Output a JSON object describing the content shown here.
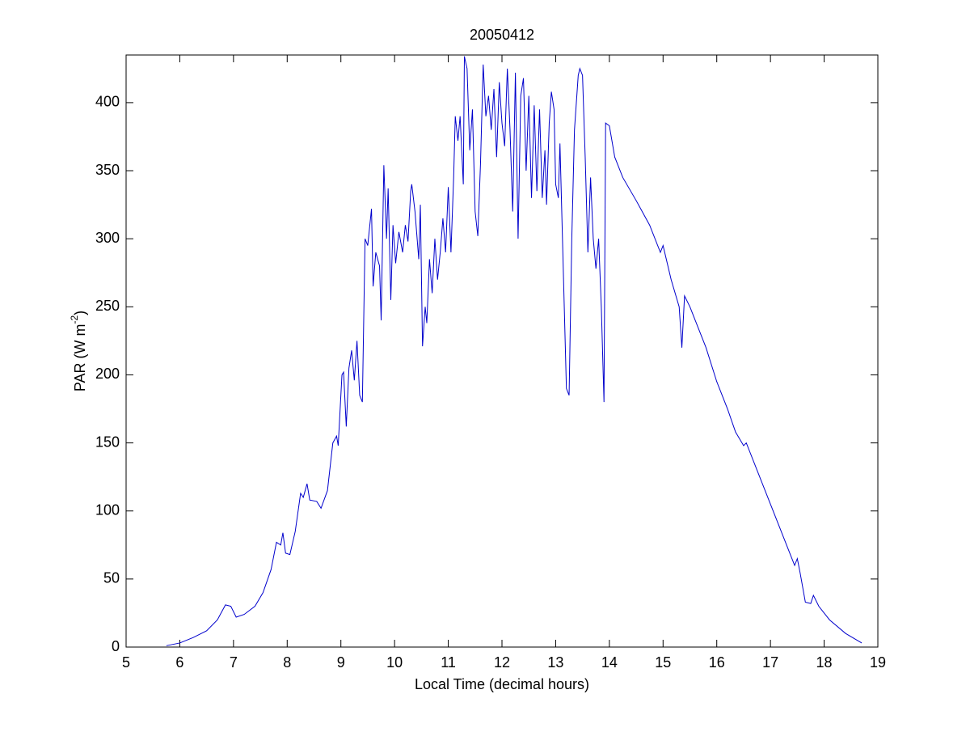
{
  "chart_data": {
    "type": "line",
    "title": "20050412",
    "x_label": "Local Time (decimal hours)",
    "y_label": {
      "text": "PAR (W m",
      "sup": "-2",
      "end": ")"
    },
    "xlim": [
      5,
      19
    ],
    "ylim": [
      0,
      435
    ],
    "xticks": [
      5,
      6,
      7,
      8,
      9,
      10,
      11,
      12,
      13,
      14,
      15,
      16,
      17,
      18,
      19
    ],
    "yticks": [
      0,
      50,
      100,
      150,
      200,
      250,
      300,
      350,
      400
    ],
    "grid": false,
    "box": true,
    "series": [
      {
        "color": "#0000cc",
        "x": [
          5.75,
          6.0,
          6.25,
          6.5,
          6.7,
          6.85,
          6.95,
          7.05,
          7.2,
          7.4,
          7.55,
          7.7,
          7.8,
          7.88,
          7.92,
          7.97,
          8.05,
          8.15,
          8.25,
          8.3,
          8.37,
          8.42,
          8.55,
          8.63,
          8.75,
          8.85,
          8.92,
          8.95,
          9.02,
          9.05,
          9.1,
          9.15,
          9.2,
          9.25,
          9.3,
          9.35,
          9.4,
          9.45,
          9.5,
          9.57,
          9.6,
          9.65,
          9.72,
          9.75,
          9.8,
          9.85,
          9.88,
          9.93,
          9.97,
          10.02,
          10.08,
          10.15,
          10.2,
          10.25,
          10.3,
          10.32,
          10.38,
          10.45,
          10.48,
          10.52,
          10.57,
          10.6,
          10.65,
          10.7,
          10.75,
          10.8,
          10.85,
          10.9,
          10.95,
          11.0,
          11.05,
          11.1,
          11.13,
          11.18,
          11.22,
          11.28,
          11.3,
          11.35,
          11.4,
          11.45,
          11.5,
          11.55,
          11.6,
          11.65,
          11.7,
          11.75,
          11.8,
          11.85,
          11.9,
          11.95,
          12.0,
          12.05,
          12.1,
          12.15,
          12.2,
          12.25,
          12.3,
          12.35,
          12.4,
          12.45,
          12.5,
          12.55,
          12.6,
          12.65,
          12.7,
          12.75,
          12.8,
          12.83,
          12.88,
          12.92,
          12.97,
          13.0,
          13.05,
          13.08,
          13.12,
          13.2,
          13.25,
          13.3,
          13.35,
          13.42,
          13.45,
          13.5,
          13.55,
          13.6,
          13.65,
          13.7,
          13.75,
          13.8,
          13.85,
          13.9,
          13.93,
          14.0,
          14.1,
          14.25,
          14.5,
          14.75,
          14.95,
          15.0,
          15.15,
          15.3,
          15.35,
          15.4,
          15.5,
          15.6,
          15.8,
          16.0,
          16.2,
          16.35,
          16.5,
          16.55,
          16.8,
          17.0,
          17.15,
          17.3,
          17.45,
          17.5,
          17.55,
          17.65,
          17.75,
          17.8,
          17.9,
          18.1,
          18.4,
          18.7
        ],
        "values": [
          1,
          3,
          7,
          12,
          20,
          31,
          30,
          22,
          24,
          30,
          40,
          57,
          77,
          75,
          84,
          69,
          68,
          85,
          113,
          110,
          120,
          108,
          107,
          102,
          115,
          150,
          155,
          148,
          200,
          202,
          162,
          205,
          218,
          196,
          225,
          185,
          180,
          300,
          295,
          322,
          265,
          290,
          280,
          240,
          354,
          300,
          337,
          255,
          310,
          282,
          305,
          290,
          310,
          298,
          335,
          340,
          320,
          285,
          325,
          221,
          250,
          238,
          285,
          260,
          300,
          270,
          290,
          315,
          290,
          338,
          290,
          345,
          390,
          372,
          390,
          340,
          434,
          425,
          365,
          395,
          320,
          302,
          355,
          428,
          390,
          405,
          380,
          410,
          360,
          415,
          385,
          368,
          425,
          380,
          320,
          422,
          300,
          405,
          418,
          350,
          405,
          330,
          398,
          335,
          395,
          330,
          365,
          325,
          385,
          408,
          395,
          340,
          330,
          370,
          310,
          190,
          185,
          300,
          380,
          420,
          425,
          420,
          360,
          290,
          345,
          300,
          278,
          300,
          250,
          180,
          385,
          383,
          360,
          345,
          328,
          310,
          290,
          295,
          270,
          250,
          220,
          258,
          250,
          240,
          220,
          195,
          175,
          158,
          148,
          150,
          125,
          105,
          90,
          75,
          60,
          65,
          55,
          33,
          32,
          38,
          30,
          20,
          10,
          3
        ]
      }
    ]
  }
}
